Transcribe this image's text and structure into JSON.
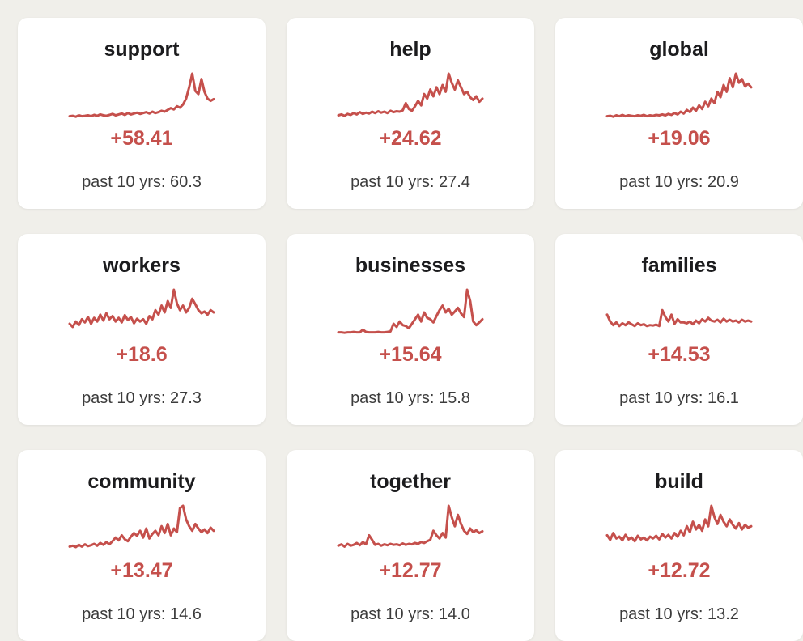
{
  "theme": {
    "background": "#f0efea",
    "card_background": "#ffffff",
    "accent": "#c5504c",
    "title_color": "#1c1c1e",
    "muted_text_color": "#3c3c3c"
  },
  "chart_data": [
    {
      "type": "line",
      "title": "support",
      "change_label": "+58.41",
      "past_label": "past 10 yrs: 60.3",
      "x_meaning": "time, past 10 yrs",
      "values": [
        6,
        7,
        5,
        8,
        6,
        7,
        8,
        6,
        9,
        7,
        10,
        8,
        7,
        9,
        11,
        8,
        10,
        12,
        9,
        13,
        10,
        12,
        14,
        11,
        13,
        15,
        12,
        16,
        13,
        15,
        18,
        16,
        20,
        24,
        21,
        28,
        25,
        32,
        45,
        70,
        100,
        62,
        55,
        88,
        60,
        45,
        40,
        44
      ]
    },
    {
      "type": "line",
      "title": "help",
      "change_label": "+24.62",
      "past_label": "past 10 yrs: 27.4",
      "x_meaning": "time, past 10 yrs",
      "values": [
        8,
        10,
        7,
        11,
        9,
        13,
        10,
        15,
        11,
        14,
        12,
        16,
        13,
        17,
        14,
        16,
        13,
        18,
        15,
        17,
        16,
        19,
        35,
        22,
        18,
        28,
        40,
        30,
        55,
        45,
        65,
        50,
        70,
        55,
        75,
        60,
        100,
        80,
        65,
        85,
        70,
        55,
        60,
        48,
        42,
        50,
        38,
        45
      ]
    },
    {
      "type": "line",
      "title": "global",
      "change_label": "+19.06",
      "past_label": "past 10 yrs: 20.9",
      "x_meaning": "time, past 10 yrs",
      "values": [
        6,
        7,
        5,
        8,
        6,
        9,
        6,
        8,
        7,
        6,
        8,
        7,
        9,
        6,
        8,
        7,
        9,
        8,
        10,
        8,
        11,
        9,
        13,
        10,
        16,
        12,
        20,
        15,
        25,
        18,
        30,
        22,
        38,
        28,
        45,
        35,
        60,
        48,
        75,
        60,
        90,
        70,
        100,
        80,
        88,
        72,
        78,
        70
      ]
    },
    {
      "type": "line",
      "title": "workers",
      "change_label": "+18.6",
      "past_label": "past 10 yrs: 27.3",
      "x_meaning": "time, past 10 yrs",
      "values": [
        25,
        18,
        30,
        22,
        35,
        28,
        40,
        25,
        38,
        30,
        45,
        32,
        48,
        35,
        42,
        30,
        38,
        28,
        44,
        33,
        40,
        26,
        36,
        30,
        35,
        25,
        42,
        35,
        55,
        45,
        65,
        50,
        75,
        60,
        100,
        70,
        55,
        65,
        50,
        60,
        80,
        68,
        55,
        48,
        52,
        45,
        55,
        50
      ]
    },
    {
      "type": "line",
      "title": "businesses",
      "change_label": "+15.64",
      "past_label": "past 10 yrs: 15.8",
      "x_meaning": "time, past 10 yrs",
      "values": [
        6,
        6,
        5,
        6,
        6,
        7,
        6,
        6,
        12,
        7,
        6,
        6,
        6,
        7,
        6,
        6,
        7,
        8,
        25,
        18,
        30,
        22,
        20,
        15,
        25,
        35,
        45,
        30,
        50,
        38,
        35,
        28,
        42,
        55,
        65,
        50,
        58,
        45,
        52,
        60,
        48,
        40,
        100,
        75,
        30,
        22,
        28,
        35
      ]
    },
    {
      "type": "line",
      "title": "families",
      "change_label": "+14.53",
      "past_label": "past 10 yrs: 16.1",
      "x_meaning": "time, past 10 yrs",
      "values": [
        45,
        30,
        22,
        28,
        20,
        26,
        22,
        28,
        24,
        20,
        26,
        22,
        24,
        20,
        22,
        21,
        23,
        20,
        55,
        40,
        30,
        45,
        25,
        35,
        28,
        28,
        26,
        30,
        24,
        32,
        26,
        35,
        30,
        38,
        32,
        30,
        34,
        28,
        36,
        30,
        34,
        30,
        32,
        28,
        34,
        30,
        32,
        30
      ]
    },
    {
      "type": "line",
      "title": "community",
      "change_label": "+13.47",
      "past_label": "past 10 yrs: 14.6",
      "x_meaning": "time, past 10 yrs",
      "values": [
        10,
        12,
        9,
        14,
        10,
        15,
        11,
        13,
        16,
        12,
        18,
        14,
        20,
        15,
        22,
        30,
        24,
        35,
        26,
        22,
        32,
        40,
        34,
        45,
        30,
        50,
        28,
        38,
        45,
        35,
        55,
        40,
        60,
        35,
        50,
        42,
        95,
        100,
        70,
        55,
        45,
        60,
        50,
        42,
        48,
        40,
        52,
        45
      ]
    },
    {
      "type": "line",
      "title": "together",
      "change_label": "+12.77",
      "past_label": "past 10 yrs: 14.0",
      "x_meaning": "time, past 10 yrs",
      "values": [
        12,
        15,
        10,
        16,
        12,
        14,
        18,
        13,
        20,
        15,
        35,
        25,
        14,
        16,
        12,
        15,
        13,
        16,
        14,
        15,
        13,
        17,
        14,
        16,
        15,
        18,
        16,
        20,
        18,
        22,
        25,
        45,
        35,
        28,
        40,
        30,
        100,
        75,
        55,
        80,
        60,
        45,
        38,
        50,
        42,
        46,
        40,
        44
      ]
    },
    {
      "type": "line",
      "title": "build",
      "change_label": "+12.72",
      "past_label": "past 10 yrs: 13.2",
      "x_meaning": "time, past 10 yrs",
      "values": [
        35,
        25,
        40,
        28,
        32,
        24,
        36,
        26,
        30,
        22,
        34,
        26,
        30,
        24,
        32,
        28,
        34,
        26,
        38,
        30,
        36,
        28,
        40,
        32,
        45,
        35,
        55,
        42,
        65,
        48,
        58,
        45,
        70,
        55,
        100,
        75,
        60,
        80,
        65,
        55,
        70,
        58,
        50,
        62,
        48,
        58,
        52,
        55
      ]
    }
  ]
}
